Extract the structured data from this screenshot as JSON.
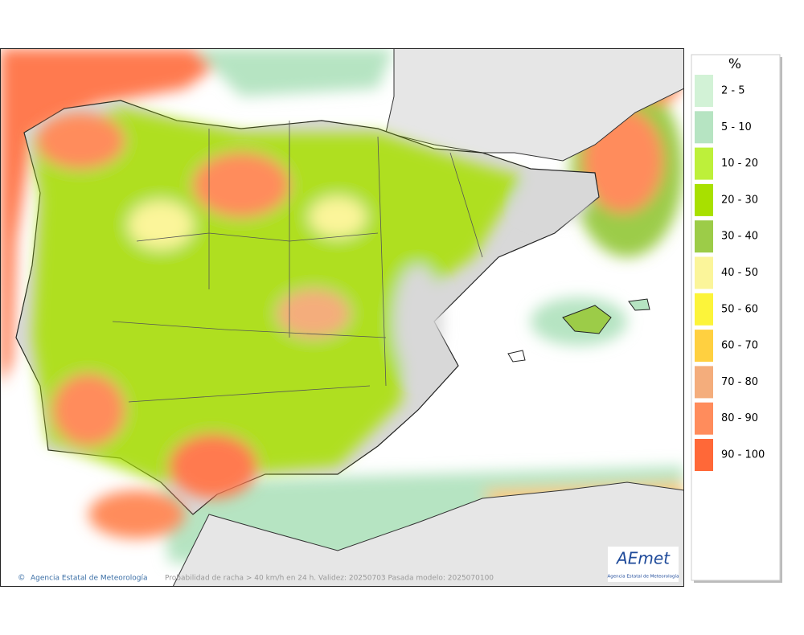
{
  "map": {
    "credit": "Agencia Estatal de Meteorología",
    "caption": "Probabilidad de racha > 40 km/h en 24 h. Validez: 20250703 Pasada modelo: 2025070100",
    "logo": {
      "name": "AEmet",
      "subtitle": "Agencia Estatal de Meteorología"
    }
  },
  "legend": {
    "title": "%",
    "items": [
      {
        "label": "2 - 5",
        "color": "#d2f2d6"
      },
      {
        "label": "5 - 10",
        "color": "#b6e4c2"
      },
      {
        "label": "10 - 20",
        "color": "#bdf03a"
      },
      {
        "label": "20 - 30",
        "color": "#a8e000"
      },
      {
        "label": "30 - 40",
        "color": "#9ccc48"
      },
      {
        "label": "40 - 50",
        "color": "#fbf59a"
      },
      {
        "label": "50 - 60",
        "color": "#fcf43a"
      },
      {
        "label": "60 - 70",
        "color": "#ffd040"
      },
      {
        "label": "70 - 80",
        "color": "#f4ad7c"
      },
      {
        "label": "80 - 90",
        "color": "#ff8c5c"
      },
      {
        "label": "90 - 100",
        "color": "#ff6838"
      }
    ]
  }
}
